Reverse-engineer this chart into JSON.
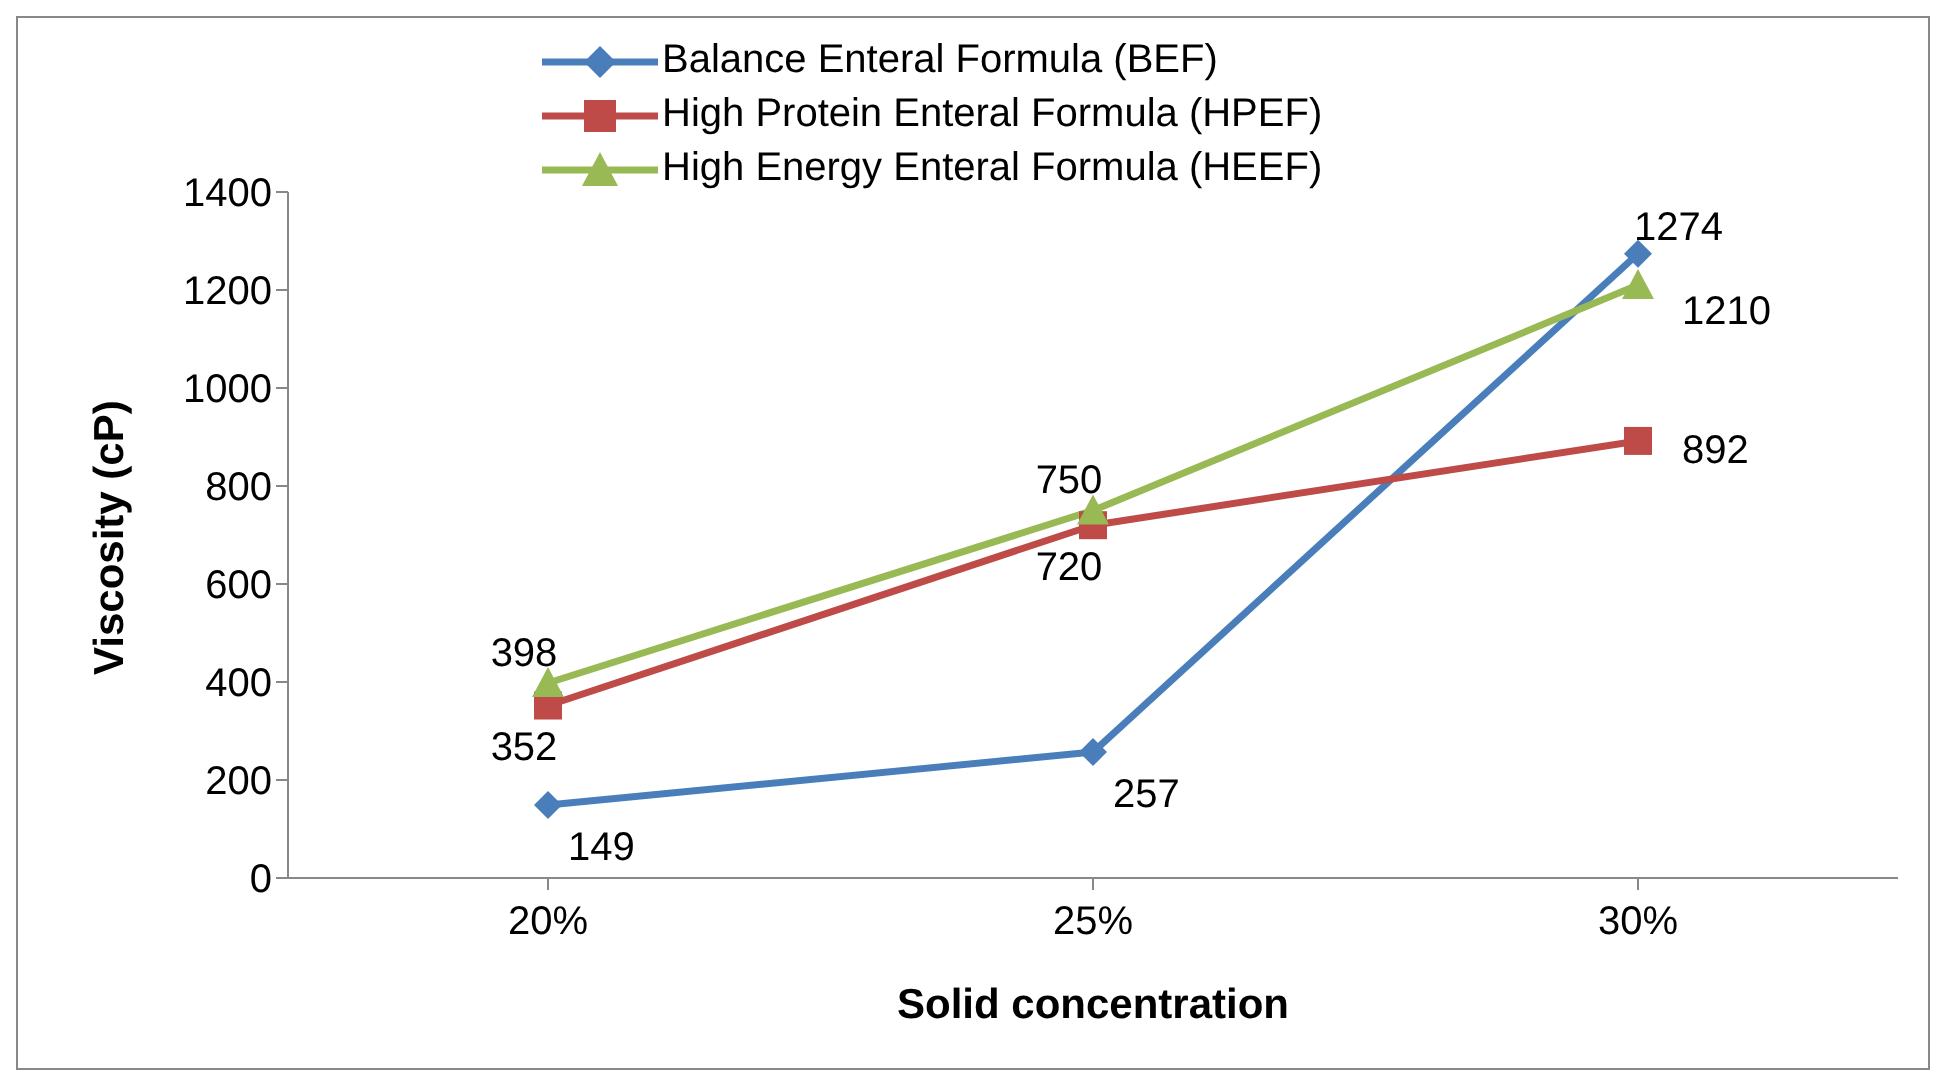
{
  "chart_data": {
    "type": "line",
    "xlabel": "Solid concentration",
    "ylabel": "Viscosity (cP)",
    "categories": [
      "20%",
      "25%",
      "30%"
    ],
    "series": [
      {
        "name": "Balance Enteral Formula (BEF)",
        "color": "#4a7ebb",
        "marker": "diamond",
        "values": [
          149,
          257,
          1274
        ]
      },
      {
        "name": "High Protein Enteral Formula (HPEF)",
        "color": "#be4b48",
        "marker": "square",
        "values": [
          352,
          720,
          892
        ]
      },
      {
        "name": "High Energy Enteral Formula (HEEF)",
        "color": "#98b954",
        "marker": "triangle",
        "values": [
          398,
          750,
          1210
        ]
      }
    ],
    "ylim": [
      0,
      1400
    ],
    "yticks": [
      0,
      200,
      400,
      600,
      800,
      1000,
      1200,
      1400
    ],
    "grid": false,
    "legend": "top",
    "data_labels": true
  }
}
